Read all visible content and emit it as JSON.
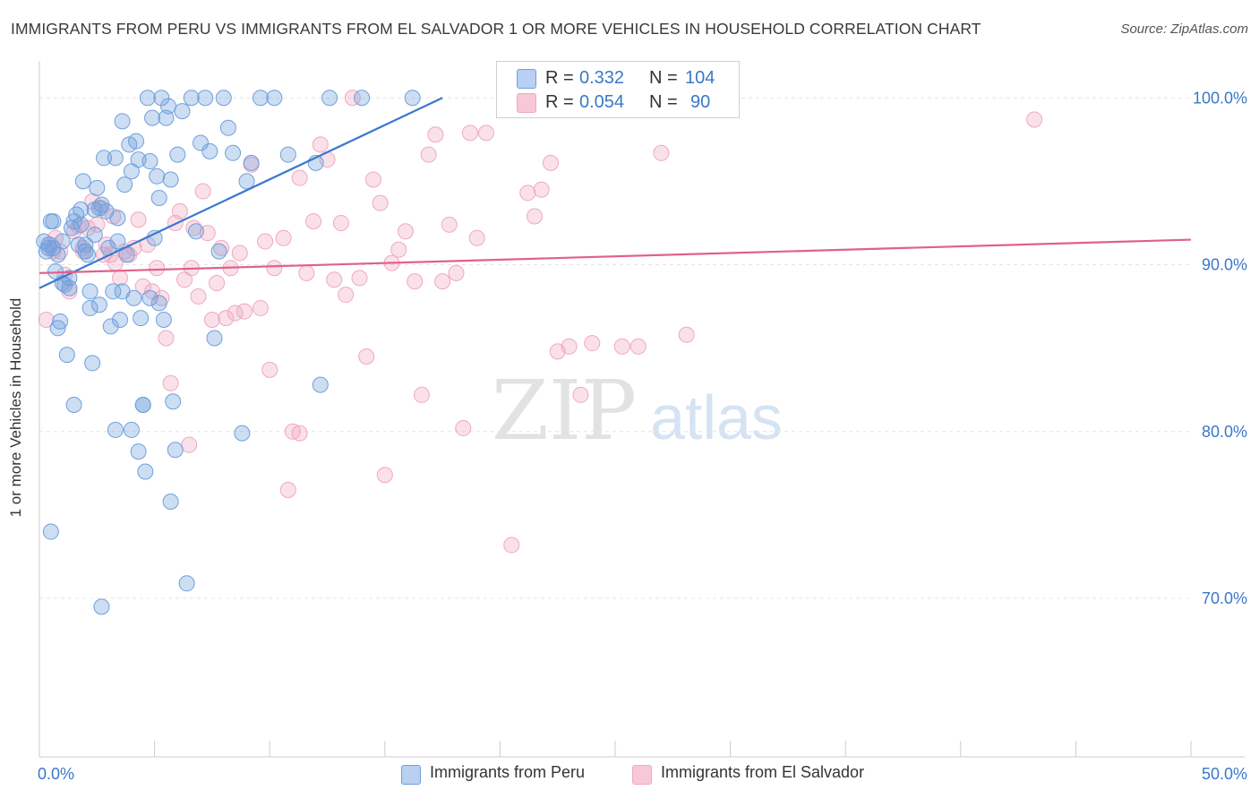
{
  "title": "IMMIGRANTS FROM PERU VS IMMIGRANTS FROM EL SALVADOR 1 OR MORE VEHICLES IN HOUSEHOLD CORRELATION CHART",
  "source": "Source: ZipAtlas.com",
  "watermark": {
    "zip": "ZIP",
    "atlas": "atlas"
  },
  "legend": {
    "series": [
      {
        "r_label": "R =",
        "r_value": "0.332",
        "n_label": "N =",
        "n_value": "104"
      },
      {
        "r_label": "R =",
        "r_value": "0.054",
        "n_label": "N =",
        "n_value": "90"
      }
    ]
  },
  "chart_data": {
    "type": "scatter",
    "ylabel": "1 or more Vehicles in Household",
    "xlim": [
      0,
      50
    ],
    "ylim": [
      60.5,
      102
    ],
    "x_tick_labels": [
      {
        "value": 0,
        "label": "0.0%"
      },
      {
        "value": 50,
        "label": "50.0%"
      }
    ],
    "y_tick_labels": [
      {
        "value": 100,
        "label": "100.0%"
      },
      {
        "value": 90,
        "label": "90.0%"
      },
      {
        "value": 80,
        "label": "80.0%"
      },
      {
        "value": 70,
        "label": "70.0%"
      }
    ],
    "colors": {
      "peru": "#6fa0dd",
      "peru_line": "#3a78d0",
      "salvador": "#f0a8bf",
      "salvador_line": "#e0608c",
      "value_text": "#3a78c9"
    },
    "series": [
      {
        "name": "Immigrants from Peru",
        "trend": {
          "x": [
            0.0,
            17.5
          ],
          "y": [
            88.6,
            100.0
          ]
        },
        "points": [
          [
            0.2,
            91.4
          ],
          [
            0.3,
            90.8
          ],
          [
            0.4,
            91.2
          ],
          [
            0.5,
            92.6
          ],
          [
            0.6,
            91.0
          ],
          [
            0.7,
            89.6
          ],
          [
            0.8,
            86.2
          ],
          [
            0.9,
            86.6
          ],
          [
            1.0,
            88.9
          ],
          [
            1.1,
            88.8
          ],
          [
            1.2,
            84.6
          ],
          [
            1.3,
            88.6
          ],
          [
            1.4,
            92.2
          ],
          [
            1.5,
            92.6
          ],
          [
            1.6,
            93.0
          ],
          [
            1.7,
            91.2
          ],
          [
            1.8,
            93.3
          ],
          [
            1.9,
            95.0
          ],
          [
            2.0,
            91.2
          ],
          [
            2.1,
            90.6
          ],
          [
            2.2,
            88.4
          ],
          [
            2.3,
            84.1
          ],
          [
            2.4,
            93.3
          ],
          [
            2.5,
            94.6
          ],
          [
            2.6,
            87.6
          ],
          [
            2.7,
            93.6
          ],
          [
            2.8,
            96.4
          ],
          [
            2.9,
            93.2
          ],
          [
            3.0,
            91.0
          ],
          [
            3.1,
            86.3
          ],
          [
            3.2,
            88.4
          ],
          [
            3.3,
            96.4
          ],
          [
            3.4,
            91.4
          ],
          [
            3.5,
            86.7
          ],
          [
            3.6,
            98.6
          ],
          [
            3.7,
            94.8
          ],
          [
            3.8,
            90.6
          ],
          [
            3.9,
            97.2
          ],
          [
            4.0,
            95.6
          ],
          [
            4.1,
            88.0
          ],
          [
            4.2,
            97.4
          ],
          [
            4.3,
            96.3
          ],
          [
            4.4,
            86.8
          ],
          [
            4.5,
            81.6
          ],
          [
            4.6,
            77.6
          ],
          [
            4.7,
            100.0
          ],
          [
            4.8,
            96.2
          ],
          [
            4.9,
            98.8
          ],
          [
            5.0,
            91.6
          ],
          [
            5.1,
            95.3
          ],
          [
            5.2,
            94.0
          ],
          [
            5.3,
            100.0
          ],
          [
            5.4,
            86.7
          ],
          [
            5.5,
            98.8
          ],
          [
            5.6,
            99.5
          ],
          [
            5.7,
            95.1
          ],
          [
            5.8,
            81.8
          ],
          [
            5.9,
            78.9
          ],
          [
            6.0,
            96.6
          ],
          [
            6.2,
            99.2
          ],
          [
            6.4,
            70.9
          ],
          [
            6.6,
            100.0
          ],
          [
            6.8,
            92.0
          ],
          [
            7.0,
            97.3
          ],
          [
            7.2,
            100.0
          ],
          [
            7.4,
            96.8
          ],
          [
            7.6,
            85.6
          ],
          [
            7.8,
            90.8
          ],
          [
            8.0,
            100.0
          ],
          [
            8.2,
            98.2
          ],
          [
            8.4,
            96.7
          ],
          [
            8.8,
            79.9
          ],
          [
            9.0,
            95.0
          ],
          [
            9.2,
            96.1
          ],
          [
            9.6,
            100.0
          ],
          [
            10.2,
            100.0
          ],
          [
            10.8,
            96.6
          ],
          [
            12.0,
            96.1
          ],
          [
            12.2,
            82.8
          ],
          [
            12.6,
            100.0
          ],
          [
            14.0,
            100.0
          ],
          [
            16.2,
            100.0
          ],
          [
            0.5,
            74.0
          ],
          [
            2.7,
            69.5
          ],
          [
            4.3,
            78.8
          ],
          [
            4.5,
            81.6
          ],
          [
            1.5,
            81.6
          ],
          [
            3.3,
            80.1
          ],
          [
            5.7,
            75.8
          ],
          [
            4.0,
            80.1
          ],
          [
            0.4,
            91.0
          ],
          [
            1.0,
            91.4
          ],
          [
            2.0,
            90.8
          ],
          [
            1.3,
            89.2
          ],
          [
            0.8,
            90.6
          ],
          [
            2.6,
            93.4
          ],
          [
            3.4,
            92.8
          ],
          [
            2.4,
            91.8
          ],
          [
            0.6,
            92.6
          ],
          [
            1.8,
            92.4
          ],
          [
            4.8,
            88.0
          ],
          [
            3.6,
            88.4
          ],
          [
            2.2,
            87.4
          ],
          [
            5.2,
            87.7
          ]
        ]
      },
      {
        "name": "Immigrants from El Salvador",
        "trend": {
          "x": [
            0.0,
            50.0
          ],
          "y": [
            89.5,
            91.5
          ]
        },
        "points": [
          [
            0.3,
            86.7
          ],
          [
            0.5,
            91.2
          ],
          [
            0.7,
            91.6
          ],
          [
            0.9,
            90.8
          ],
          [
            1.1,
            89.4
          ],
          [
            1.3,
            88.4
          ],
          [
            1.5,
            92.0
          ],
          [
            1.7,
            92.3
          ],
          [
            1.9,
            91.0
          ],
          [
            2.1,
            92.2
          ],
          [
            2.3,
            93.8
          ],
          [
            2.5,
            92.4
          ],
          [
            2.7,
            93.4
          ],
          [
            2.9,
            91.2
          ],
          [
            3.1,
            90.6
          ],
          [
            3.3,
            90.1
          ],
          [
            3.5,
            89.2
          ],
          [
            3.7,
            90.8
          ],
          [
            3.9,
            90.6
          ],
          [
            4.1,
            91.0
          ],
          [
            4.3,
            92.7
          ],
          [
            4.5,
            88.7
          ],
          [
            4.7,
            91.2
          ],
          [
            4.9,
            88.4
          ],
          [
            5.1,
            89.8
          ],
          [
            5.3,
            88.0
          ],
          [
            5.5,
            85.6
          ],
          [
            5.7,
            82.9
          ],
          [
            5.9,
            92.5
          ],
          [
            6.1,
            93.2
          ],
          [
            6.3,
            89.1
          ],
          [
            6.5,
            79.2
          ],
          [
            6.7,
            92.2
          ],
          [
            6.9,
            88.1
          ],
          [
            7.1,
            94.4
          ],
          [
            7.3,
            91.9
          ],
          [
            7.5,
            86.7
          ],
          [
            7.7,
            88.9
          ],
          [
            7.9,
            91.0
          ],
          [
            8.1,
            86.8
          ],
          [
            8.3,
            89.8
          ],
          [
            8.5,
            87.1
          ],
          [
            8.7,
            90.7
          ],
          [
            8.9,
            87.2
          ],
          [
            9.2,
            96.0
          ],
          [
            9.6,
            87.4
          ],
          [
            9.8,
            91.4
          ],
          [
            10.0,
            83.7
          ],
          [
            10.2,
            89.8
          ],
          [
            10.6,
            91.6
          ],
          [
            10.8,
            76.5
          ],
          [
            11.0,
            80.0
          ],
          [
            11.3,
            95.2
          ],
          [
            11.6,
            89.5
          ],
          [
            11.9,
            92.6
          ],
          [
            12.2,
            97.2
          ],
          [
            12.5,
            96.3
          ],
          [
            12.8,
            89.1
          ],
          [
            13.1,
            92.5
          ],
          [
            13.3,
            88.2
          ],
          [
            13.6,
            100.0
          ],
          [
            13.9,
            89.2
          ],
          [
            14.2,
            84.5
          ],
          [
            14.5,
            95.1
          ],
          [
            14.8,
            93.7
          ],
          [
            15.0,
            77.4
          ],
          [
            15.3,
            90.1
          ],
          [
            15.6,
            90.9
          ],
          [
            15.9,
            92.0
          ],
          [
            16.3,
            89.0
          ],
          [
            16.6,
            82.2
          ],
          [
            16.9,
            96.6
          ],
          [
            17.2,
            97.8
          ],
          [
            17.5,
            89.0
          ],
          [
            17.8,
            92.4
          ],
          [
            18.1,
            89.5
          ],
          [
            18.4,
            80.2
          ],
          [
            18.7,
            97.9
          ],
          [
            19.0,
            91.6
          ],
          [
            19.4,
            97.9
          ],
          [
            20.5,
            73.2
          ],
          [
            21.2,
            94.3
          ],
          [
            21.5,
            92.9
          ],
          [
            21.8,
            94.5
          ],
          [
            22.2,
            96.1
          ],
          [
            22.5,
            84.8
          ],
          [
            23.0,
            85.1
          ],
          [
            23.5,
            82.2
          ],
          [
            24.0,
            85.3
          ],
          [
            27.0,
            96.7
          ]
        ]
      }
    ],
    "extra_points_salvador": [
      [
        25.3,
        85.1
      ],
      [
        26.0,
        85.1
      ],
      [
        28.1,
        85.8
      ],
      [
        43.2,
        98.7
      ],
      [
        11.3,
        79.9
      ],
      [
        6.6,
        89.8
      ],
      [
        3.2,
        92.9
      ],
      [
        1.9,
        90.8
      ],
      [
        0.6,
        90.8
      ],
      [
        2.8,
        90.6
      ]
    ]
  },
  "bottom_legend": {
    "peru_label": "Immigrants from Peru",
    "salvador_label": "Immigrants from El Salvador"
  }
}
